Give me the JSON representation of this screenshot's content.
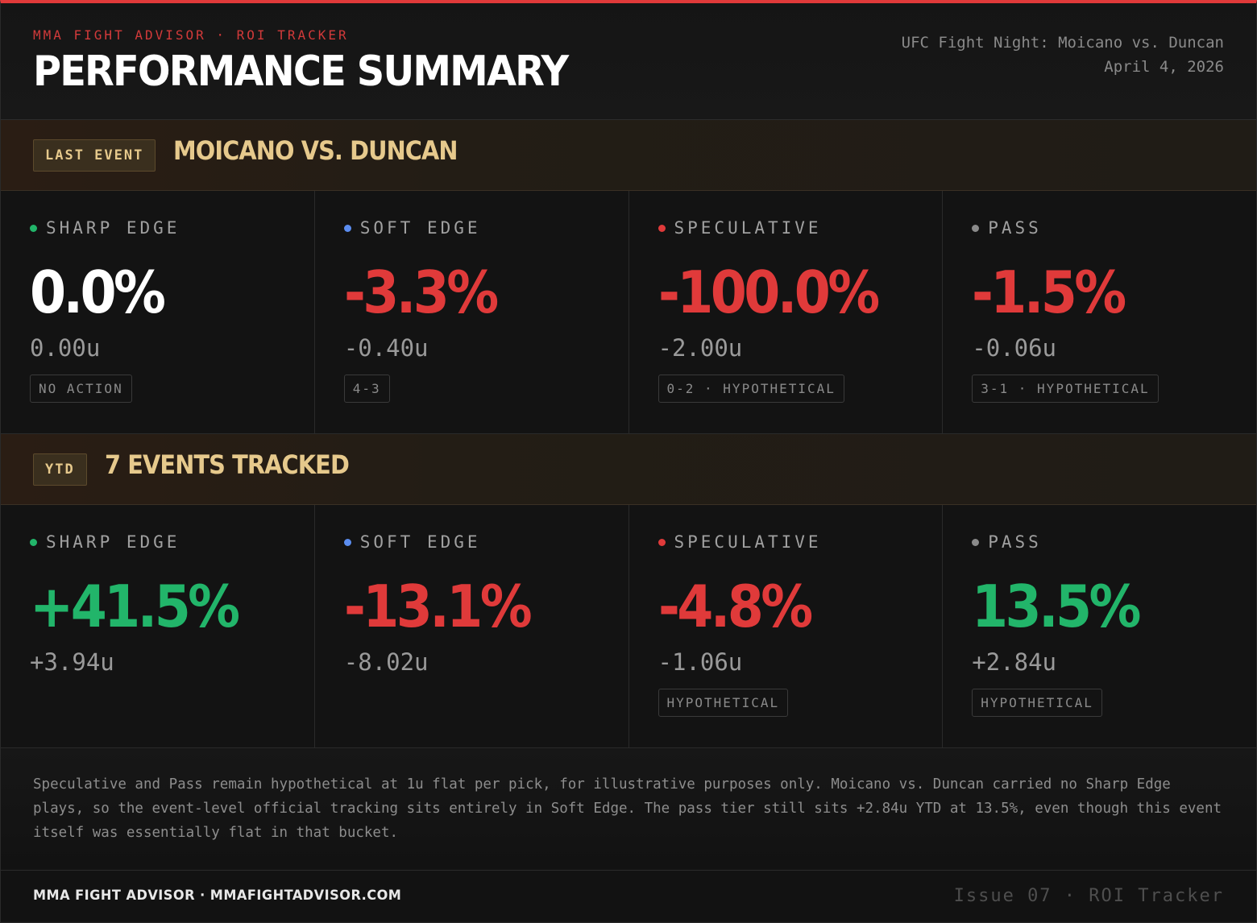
{
  "header": {
    "kicker": "MMA FIGHT ADVISOR · ROI TRACKER",
    "title": "PERFORMANCE SUMMARY",
    "event_name": "UFC Fight Night: Moicano vs. Duncan",
    "event_date": "April 4, 2026"
  },
  "colors": {
    "accent_red": "#e03a3a",
    "positive_green": "#22b56a",
    "soft_blue": "#5b8df0",
    "pass_gray": "#8a8a8a",
    "gold": "#e6c98c"
  },
  "last_event": {
    "tag": "LAST EVENT",
    "title": "MOICANO VS. DUNCAN",
    "tiers": [
      {
        "label": "SHARP EDGE",
        "pct": "0.0%",
        "units": "0.00u",
        "chip": "NO ACTION",
        "dot_color": "#22b56a",
        "tone": "zero"
      },
      {
        "label": "SOFT EDGE",
        "pct": "-3.3%",
        "units": "-0.40u",
        "chip": "4-3",
        "dot_color": "#5b8df0",
        "tone": "neg"
      },
      {
        "label": "SPECULATIVE",
        "pct": "-100.0%",
        "units": "-2.00u",
        "chip": "0-2 · HYPOTHETICAL",
        "dot_color": "#e03a3a",
        "tone": "neg"
      },
      {
        "label": "PASS",
        "pct": "-1.5%",
        "units": "-0.06u",
        "chip": "3-1 · HYPOTHETICAL",
        "dot_color": "#8a8a8a",
        "tone": "neg"
      }
    ]
  },
  "ytd": {
    "tag": "YTD",
    "title": "7 EVENTS TRACKED",
    "tiers": [
      {
        "label": "SHARP EDGE",
        "pct": "+41.5%",
        "units": "+3.94u",
        "chip": "",
        "dot_color": "#22b56a",
        "tone": "pos"
      },
      {
        "label": "SOFT EDGE",
        "pct": "-13.1%",
        "units": "-8.02u",
        "chip": "",
        "dot_color": "#5b8df0",
        "tone": "neg"
      },
      {
        "label": "SPECULATIVE",
        "pct": "-4.8%",
        "units": "-1.06u",
        "chip": "HYPOTHETICAL",
        "dot_color": "#e03a3a",
        "tone": "neg"
      },
      {
        "label": "PASS",
        "pct": "13.5%",
        "units": "+2.84u",
        "chip": "HYPOTHETICAL",
        "dot_color": "#8a8a8a",
        "tone": "pos"
      }
    ]
  },
  "note": "Speculative and Pass remain hypothetical at 1u flat per pick, for illustrative purposes only. Moicano vs. Duncan carried no Sharp Edge plays, so the event-level official tracking sits entirely in Soft Edge. The pass tier still sits +2.84u YTD at 13.5%, even though this event itself was essentially flat in that bucket.",
  "footer": {
    "left": "MMA FIGHT ADVISOR · MMAFIGHTADVISOR.COM",
    "right": "Issue 07 · ROI Tracker"
  }
}
